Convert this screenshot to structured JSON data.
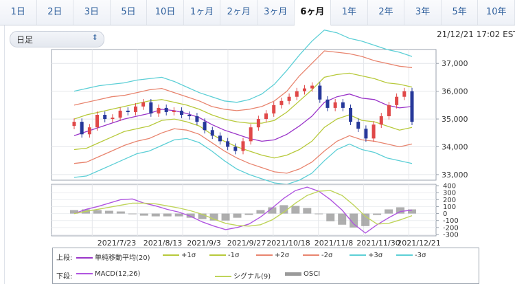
{
  "tabs": [
    {
      "label": "1日",
      "active": false
    },
    {
      "label": "2日",
      "active": false
    },
    {
      "label": "3日",
      "active": false
    },
    {
      "label": "5日",
      "active": false
    },
    {
      "label": "10日",
      "active": false
    },
    {
      "label": "1ヶ月",
      "active": false
    },
    {
      "label": "2ヶ月",
      "active": false
    },
    {
      "label": "3ヶ月",
      "active": false
    },
    {
      "label": "6ヶ月",
      "active": true
    },
    {
      "label": "1年",
      "active": false
    },
    {
      "label": "2年",
      "active": false
    },
    {
      "label": "3年",
      "active": false
    },
    {
      "label": "5年",
      "active": false
    },
    {
      "label": "10年",
      "active": false
    }
  ],
  "period_select": {
    "value": "日足",
    "icon": "updown-chevron-icon"
  },
  "timestamp": "21/12/21 17:02 EST",
  "colors": {
    "up_candle": "#e04848",
    "down_candle": "#26389a",
    "sma": "#9a34c9",
    "sigma1": "#b7c93a",
    "sigma2": "#e8846e",
    "sigma3": "#5ccfd6",
    "macd": "#b055e0",
    "signal": "#bfd45a",
    "osci": "#9a9a9a"
  },
  "chart_data": [
    {
      "type": "candlestick",
      "title": "",
      "ylim": [
        32800,
        37500
      ],
      "y_ticks": [
        "37,000",
        "36,000",
        "35,000",
        "34,000",
        "33,000"
      ],
      "y_tick_values": [
        37000,
        36000,
        35000,
        34000,
        33000
      ],
      "grid": true,
      "series": [
        {
          "name": "単純移動平均(20)",
          "close_estimate": [
            34400,
            34550,
            34700,
            34850,
            35000,
            35100,
            35200,
            35350,
            35300,
            35200,
            35050,
            34800,
            34600,
            34450,
            34300,
            34200,
            34250,
            34450,
            34750,
            35100,
            35600,
            35800,
            35900,
            35750,
            35700,
            35500,
            35400,
            35450
          ]
        },
        {
          "name": "+1σ",
          "close_estimate": [
            35000,
            35150,
            35250,
            35350,
            35450,
            35550,
            35650,
            35700,
            35600,
            35500,
            35350,
            35150,
            35000,
            34900,
            34850,
            34850,
            34950,
            35250,
            35650,
            36050,
            36500,
            36600,
            36650,
            36550,
            36450,
            36300,
            36250,
            36150
          ]
        },
        {
          "name": "-1σ",
          "close_estimate": [
            33900,
            33950,
            34150,
            34350,
            34550,
            34650,
            34750,
            34950,
            35000,
            34900,
            34750,
            34450,
            34200,
            34000,
            33850,
            33700,
            33600,
            33700,
            33900,
            34200,
            34700,
            35000,
            35150,
            34950,
            34900,
            34750,
            34600,
            34700
          ]
        },
        {
          "name": "+2σ",
          "close_estimate": [
            35500,
            35600,
            35700,
            35800,
            35850,
            35950,
            36050,
            36100,
            35950,
            35800,
            35650,
            35450,
            35350,
            35300,
            35350,
            35450,
            35650,
            36000,
            36550,
            37000,
            37450,
            37400,
            37350,
            37250,
            37100,
            37000,
            36900,
            36850
          ]
        },
        {
          "name": "-2σ",
          "close_estimate": [
            33400,
            33450,
            33650,
            33850,
            34050,
            34200,
            34300,
            34500,
            34650,
            34600,
            34450,
            34150,
            33850,
            33600,
            33400,
            33250,
            33100,
            33050,
            33200,
            33450,
            33850,
            34200,
            34400,
            34250,
            34200,
            34100,
            34000,
            34100
          ]
        },
        {
          "name": "+3σ",
          "close_estimate": [
            36000,
            36100,
            36200,
            36250,
            36300,
            36400,
            36450,
            36500,
            36350,
            36150,
            35950,
            35800,
            35650,
            35600,
            35700,
            35900,
            36250,
            36750,
            37300,
            37800,
            38200,
            38100,
            37900,
            37800,
            37650,
            37500,
            37400,
            37250
          ]
        },
        {
          "name": "-3σ",
          "close_estimate": [
            32900,
            32950,
            33150,
            33350,
            33550,
            33750,
            33850,
            34050,
            34250,
            34300,
            34150,
            33850,
            33500,
            33200,
            33000,
            32850,
            32700,
            32650,
            32800,
            33050,
            33500,
            33900,
            34100,
            33900,
            33800,
            33600,
            33500,
            33400
          ]
        }
      ],
      "candles_close": [
        34900,
        34450,
        34700,
        35150,
        35000,
        35050,
        35300,
        35250,
        35450,
        35600,
        35200,
        35400,
        35250,
        35300,
        35150,
        35100,
        34900,
        34600,
        34400,
        34200,
        34000,
        33850,
        34200,
        34700,
        35000,
        35200,
        35500,
        35650,
        35800,
        36000,
        36100,
        36200,
        35700,
        35400,
        35600,
        35400,
        34900,
        34650,
        34300,
        34800,
        35100,
        35500,
        35800,
        36000,
        34900
      ]
    },
    {
      "type": "line+bar",
      "title": "",
      "ylim": [
        -320,
        420
      ],
      "y_ticks": [
        "400",
        "300",
        "200",
        "100",
        "0",
        "-100",
        "-200",
        "-300"
      ],
      "y_tick_values": [
        400,
        300,
        200,
        100,
        0,
        -100,
        -200,
        -300
      ],
      "x_tick_labels": [
        "2021/7/23",
        "2021/8/13",
        "2021/9/3",
        "2021/9/27",
        "2021/10/18",
        "2021/11/8",
        "2021/11/30",
        "2021/12/21"
      ],
      "series": [
        {
          "name": "MACD(12,26)",
          "values": [
            0,
            60,
            100,
            150,
            200,
            210,
            150,
            110,
            60,
            20,
            -40,
            -120,
            -180,
            -230,
            -200,
            -150,
            -50,
            80,
            220,
            330,
            380,
            320,
            200,
            50,
            -150,
            -280,
            -160,
            -60,
            30,
            50
          ]
        },
        {
          "name": "シグナル(9)",
          "values": [
            0,
            30,
            60,
            90,
            120,
            150,
            150,
            140,
            110,
            80,
            40,
            -10,
            -80,
            -140,
            -170,
            -180,
            -160,
            -90,
            20,
            150,
            260,
            320,
            330,
            260,
            120,
            -40,
            -150,
            -140,
            -90,
            -30
          ]
        },
        {
          "name": "OSCI",
          "values": [
            50,
            60,
            50,
            40,
            30,
            0,
            -30,
            -40,
            -40,
            -40,
            -60,
            -80,
            -100,
            -100,
            -60,
            -20,
            50,
            90,
            120,
            110,
            80,
            -10,
            -110,
            -160,
            -200,
            -180,
            -20,
            60,
            90,
            60
          ]
        }
      ]
    }
  ],
  "legend": {
    "upper_head": "上段:",
    "lower_head": "下段:",
    "upper_items": [
      "単純移動平均(20)",
      "+1σ",
      "-1σ",
      "+2σ",
      "-2σ",
      "+3σ",
      "-3σ"
    ],
    "lower_items": [
      "MACD(12,26)",
      "シグナル(9)",
      "OSCI"
    ]
  }
}
